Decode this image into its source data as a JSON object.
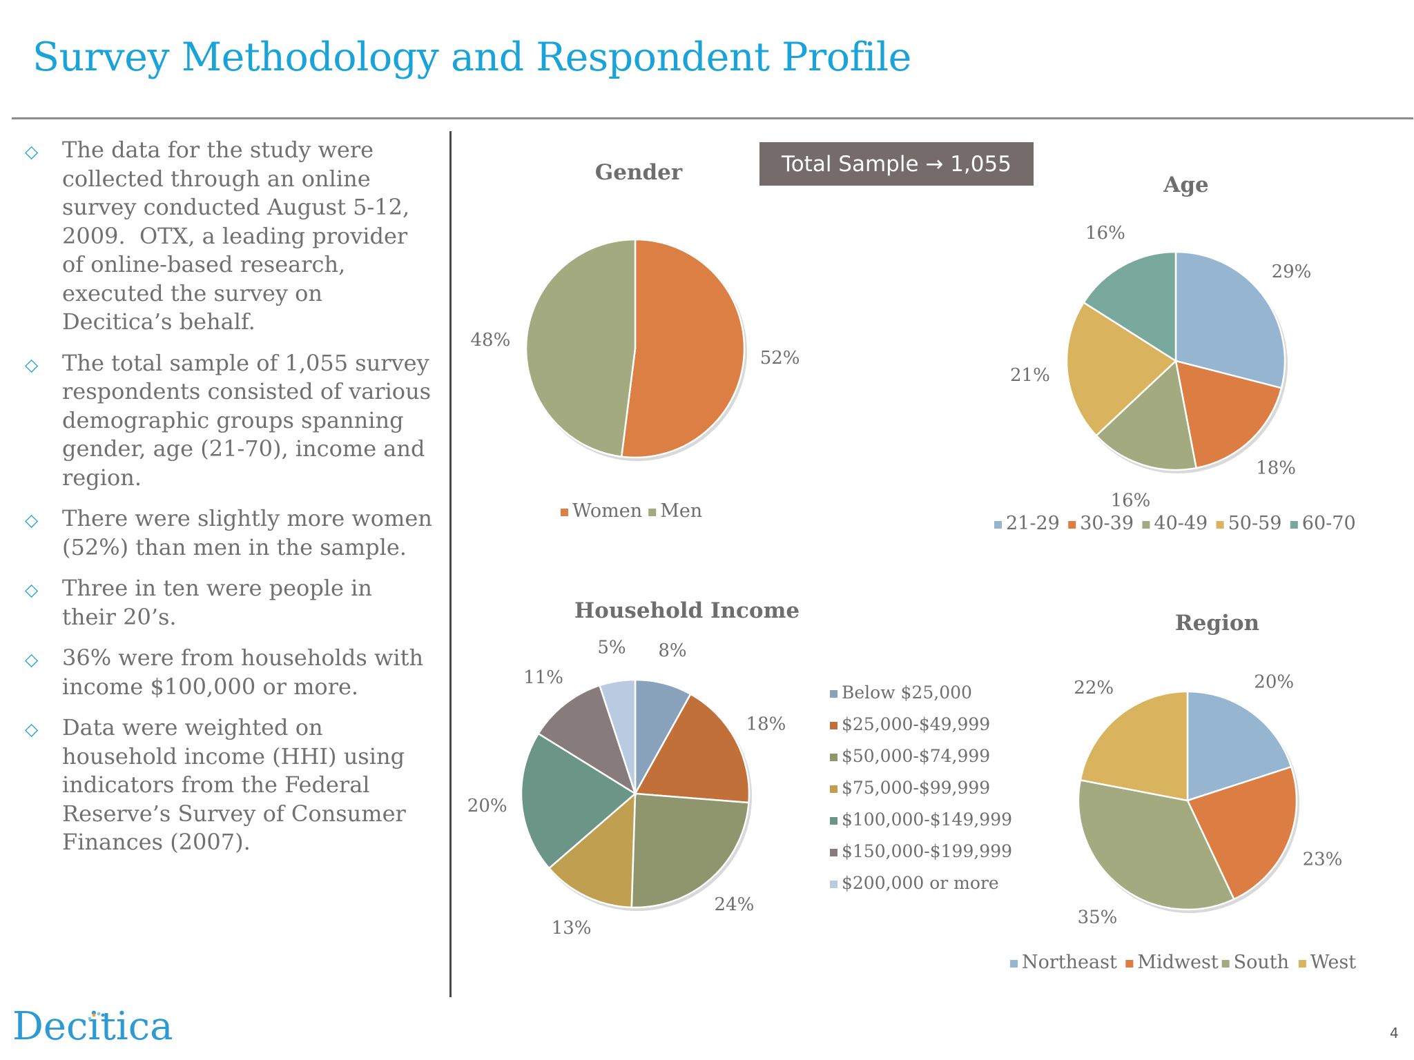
{
  "page": {
    "title": "Survey Methodology and Respondent Profile",
    "total_sample": "Total Sample → 1,055",
    "logo": "Decitica",
    "page_number": "4"
  },
  "bullets": [
    "The data for the study were collected through an online survey conducted August 5-12, 2009.  OTX, a leading provider of online-based research, executed the survey on Decitica’s behalf.",
    "The total sample of 1,055 survey respondents consisted of various demographic groups spanning gender, age (21-70), income and region.",
    "There were slightly more women (52%) than men in the sample.",
    "Three in ten were people in their 20’s.",
    "36% were from households with income $100,000 or more.",
    "Data were weighted on household income (HHI) using indicators from the Federal Reserve’s Survey of Consumer Finances (2007)."
  ],
  "chart_data": [
    {
      "id": "gender",
      "type": "pie",
      "title": "Gender",
      "categories": [
        "Women",
        "Men"
      ],
      "values": [
        52,
        48
      ],
      "labels": [
        "52%",
        "48%"
      ],
      "colors": [
        "#db7f44",
        "#a3aa80"
      ],
      "legend": "bottom"
    },
    {
      "id": "age",
      "type": "pie",
      "title": "Age",
      "categories": [
        "21-29",
        "30-39",
        "40-49",
        "50-59",
        "60-70"
      ],
      "values": [
        29,
        18,
        16,
        21,
        16
      ],
      "labels": [
        "29%",
        "18%",
        "16%",
        "21%",
        "16%"
      ],
      "colors": [
        "#95b5d1",
        "#dc7e43",
        "#a3aa80",
        "#d9b35d",
        "#79a89c"
      ],
      "legend": "bottom"
    },
    {
      "id": "income",
      "type": "pie",
      "title": "Household Income",
      "categories": [
        "Below $25,000",
        "$25,000-$49,999",
        "$50,000-$74,999",
        "$75,000-$99,999",
        "$100,000-$149,999",
        "$150,000-$199,999",
        "$200,000 or more"
      ],
      "values": [
        8,
        18,
        24,
        13,
        20,
        11,
        5
      ],
      "labels": [
        "8%",
        "18%",
        "24%",
        "13%",
        "20%",
        "11%",
        "5%"
      ],
      "colors": [
        "#87a2ba",
        "#c2703a",
        "#8f966d",
        "#c19f50",
        "#6b9587",
        "#887b7c",
        "#b8cbe0"
      ],
      "legend": "right"
    },
    {
      "id": "region",
      "type": "pie",
      "title": "Region",
      "categories": [
        "Northeast",
        "Midwest",
        "South",
        "West"
      ],
      "values": [
        20,
        23,
        35,
        22
      ],
      "labels": [
        "20%",
        "23%",
        "35%",
        "22%"
      ],
      "colors": [
        "#95b5d1",
        "#dc7e43",
        "#a3aa80",
        "#d9b35d"
      ],
      "legend": "bottom"
    }
  ]
}
